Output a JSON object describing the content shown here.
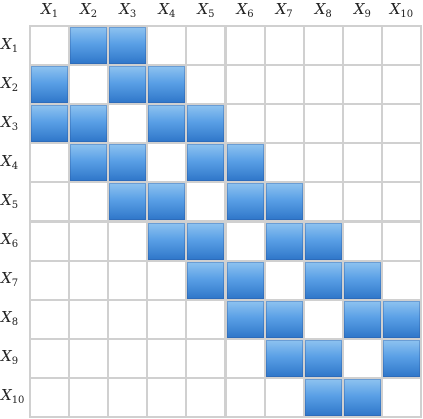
{
  "matrix": {
    "variables": [
      {
        "base": "X",
        "index": "1"
      },
      {
        "base": "X",
        "index": "2"
      },
      {
        "base": "X",
        "index": "3"
      },
      {
        "base": "X",
        "index": "4"
      },
      {
        "base": "X",
        "index": "5"
      },
      {
        "base": "X",
        "index": "6"
      },
      {
        "base": "X",
        "index": "7"
      },
      {
        "base": "X",
        "index": "8"
      },
      {
        "base": "X",
        "index": "9"
      },
      {
        "base": "X",
        "index": "10"
      }
    ],
    "filled": [
      [
        0,
        1,
        1,
        0,
        0,
        0,
        0,
        0,
        0,
        0
      ],
      [
        1,
        0,
        1,
        1,
        0,
        0,
        0,
        0,
        0,
        0
      ],
      [
        1,
        1,
        0,
        1,
        1,
        0,
        0,
        0,
        0,
        0
      ],
      [
        0,
        1,
        1,
        0,
        1,
        1,
        0,
        0,
        0,
        0
      ],
      [
        0,
        0,
        1,
        1,
        0,
        1,
        1,
        0,
        0,
        0
      ],
      [
        0,
        0,
        0,
        1,
        1,
        0,
        1,
        1,
        0,
        0
      ],
      [
        0,
        0,
        0,
        0,
        1,
        1,
        0,
        1,
        1,
        0
      ],
      [
        0,
        0,
        0,
        0,
        0,
        1,
        1,
        0,
        1,
        1
      ],
      [
        0,
        0,
        0,
        0,
        0,
        0,
        1,
        1,
        0,
        1
      ],
      [
        0,
        0,
        0,
        0,
        0,
        0,
        0,
        1,
        1,
        0
      ]
    ],
    "colors": {
      "filled_top": "#8fc3f0",
      "filled_bottom": "#2f76c9",
      "empty": "#ffffff",
      "grid": "#d0d0d0"
    }
  }
}
